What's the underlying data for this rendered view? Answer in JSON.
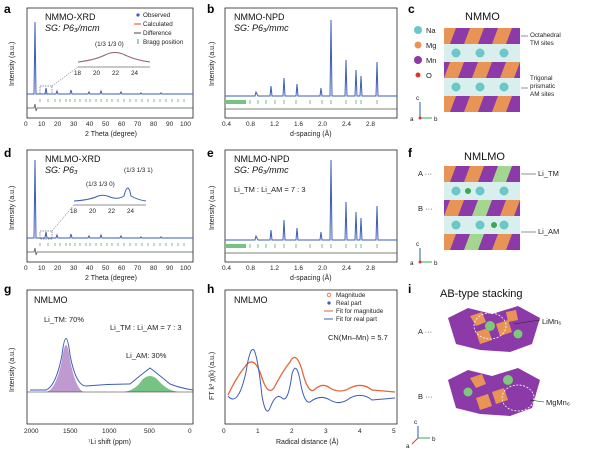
{
  "panels": {
    "a": {
      "letter": "a",
      "title": "NMMO-XRD",
      "sg": "SG: P6₃/mcm",
      "inset_label": "(1/3 1/3 0)",
      "inset_ticks": [
        "18",
        "20",
        "22",
        "24"
      ],
      "legend": [
        "Observed",
        "Calculated",
        "Difference",
        "Bragg position"
      ],
      "xlabel": "2 Theta (degree)",
      "ylabel": "Intensity (a.u.)",
      "xticks": [
        "0",
        "10",
        "20",
        "30",
        "40",
        "50",
        "60",
        "70",
        "80",
        "90",
        "100"
      ]
    },
    "b": {
      "letter": "b",
      "title": "NMMO-NPD",
      "sg": "SG: P6₃/mmc",
      "xlabel": "d-spacing (Å)",
      "ylabel": "Intensity (a.u.)",
      "xticks": [
        "0.4",
        "0.8",
        "1.2",
        "1.6",
        "2.0",
        "2.4",
        "2.8"
      ]
    },
    "c": {
      "letter": "c",
      "title": "NMMO",
      "legend": [
        "Na",
        "Mg",
        "Mn",
        "O"
      ],
      "note1": [
        "Octahedral",
        "TM sites"
      ],
      "note2": [
        "Trigonal",
        "prismatic",
        "AM sites"
      ],
      "axes": [
        "c",
        "a",
        "b"
      ]
    },
    "d": {
      "letter": "d",
      "title": "NMLMO-XRD",
      "sg": "SG: P6₃",
      "inset_label1": "(1/3 1/3 0)",
      "inset_label2": "(1/3 1/3 1)",
      "inset_ticks": [
        "18",
        "20",
        "22",
        "24"
      ],
      "xlabel": "2 Theta (degree)",
      "ylabel": "Intensity (a.u.)",
      "xticks": [
        "0",
        "10",
        "20",
        "30",
        "40",
        "50",
        "60",
        "70",
        "80",
        "90",
        "100"
      ]
    },
    "e": {
      "letter": "e",
      "title": "NMLMO-NPD",
      "sg": "SG: P6₃/mmc",
      "ratio": "Li_TM : Li_AM = 7 : 3",
      "xlabel": "d-spacing (Å)",
      "ylabel": "Intensity (a.u.)",
      "xticks": [
        "0.4",
        "0.8",
        "1.2",
        "1.6",
        "2.0",
        "2.4",
        "2.8"
      ]
    },
    "f": {
      "letter": "f",
      "title": "NMLMO",
      "rowA": "A ···",
      "rowB": "B ···",
      "li_tm": "Li_TM",
      "li_am": "Li_AM",
      "axes": [
        "c",
        "a",
        "b"
      ]
    },
    "g": {
      "letter": "g",
      "title": "NMLMO",
      "peak1": "Li_TM: 70%",
      "peak2": "Li_AM: 30%",
      "ratio": "Li_TM : Li_AM = 7 : 3",
      "xlabel": "⁷Li shift (ppm)",
      "ylabel": "Intensity (a.u.)",
      "xticks": [
        "2000",
        "1500",
        "1000",
        "500",
        "0"
      ]
    },
    "h": {
      "letter": "h",
      "title": "NMLMO",
      "legend": [
        "Magnitude",
        "Real part",
        "Fit for magnitude",
        "Fit for real part"
      ],
      "cn": "CN(Mn–Mn) = 5.7",
      "xlabel": "Radical distance (Å)",
      "ylabel": "FT k³ χ(k) (a.u.)",
      "xticks": [
        "0",
        "1",
        "2",
        "3",
        "4",
        "5"
      ]
    },
    "i": {
      "letter": "i",
      "title": "AB-type stacking",
      "rowA": "A ···",
      "rowB": "B ···",
      "lbl1": "LiMn₆",
      "lbl2": "MgMn₆",
      "axes": [
        "c",
        "a",
        "b"
      ]
    }
  },
  "colors": {
    "observed": "#3d5db8",
    "calc": "#e2663d",
    "bragg": "#3aa84f",
    "purple": "#8b3aa8",
    "green": "#3aa84f",
    "orange": "#e89456",
    "teal": "#6cc7c8"
  }
}
